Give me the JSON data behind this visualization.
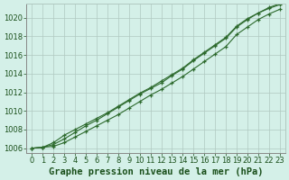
{
  "title": "Graphe pression niveau de la mer (hPa)",
  "bg_color": "#d4f0e8",
  "grid_color": "#b0c8c0",
  "line_color": "#2d6a2d",
  "axis_label_color": "#1a4f1a",
  "xlim": [
    -0.5,
    23.5
  ],
  "ylim": [
    1005.5,
    1021.5
  ],
  "yticks": [
    1006,
    1008,
    1010,
    1012,
    1014,
    1016,
    1018,
    1020
  ],
  "xticks": [
    0,
    1,
    2,
    3,
    4,
    5,
    6,
    7,
    8,
    9,
    10,
    11,
    12,
    13,
    14,
    15,
    16,
    17,
    18,
    19,
    20,
    21,
    22,
    23
  ],
  "series": [
    [
      1006.0,
      1006.1,
      1006.2,
      1006.6,
      1007.2,
      1007.8,
      1008.4,
      1009.0,
      1009.6,
      1010.3,
      1011.0,
      1011.7,
      1012.3,
      1013.0,
      1013.7,
      1014.5,
      1015.3,
      1016.1,
      1016.9,
      1018.2,
      1019.0,
      1019.8,
      1020.4,
      1020.9
    ],
    [
      1006.0,
      1006.1,
      1006.4,
      1007.0,
      1007.7,
      1008.4,
      1009.0,
      1009.7,
      1010.4,
      1011.1,
      1011.8,
      1012.4,
      1013.0,
      1013.8,
      1014.5,
      1015.4,
      1016.2,
      1017.0,
      1017.8,
      1019.0,
      1019.8,
      1020.5,
      1021.0,
      1021.4
    ],
    [
      1006.0,
      1006.1,
      1006.6,
      1007.4,
      1008.0,
      1008.6,
      1009.2,
      1009.8,
      1010.5,
      1011.2,
      1011.9,
      1012.5,
      1013.2,
      1013.9,
      1014.6,
      1015.5,
      1016.3,
      1017.1,
      1017.9,
      1019.1,
      1019.9,
      1020.5,
      1021.1,
      1021.5
    ]
  ],
  "title_fontsize": 7.5,
  "tick_fontsize": 6.0
}
